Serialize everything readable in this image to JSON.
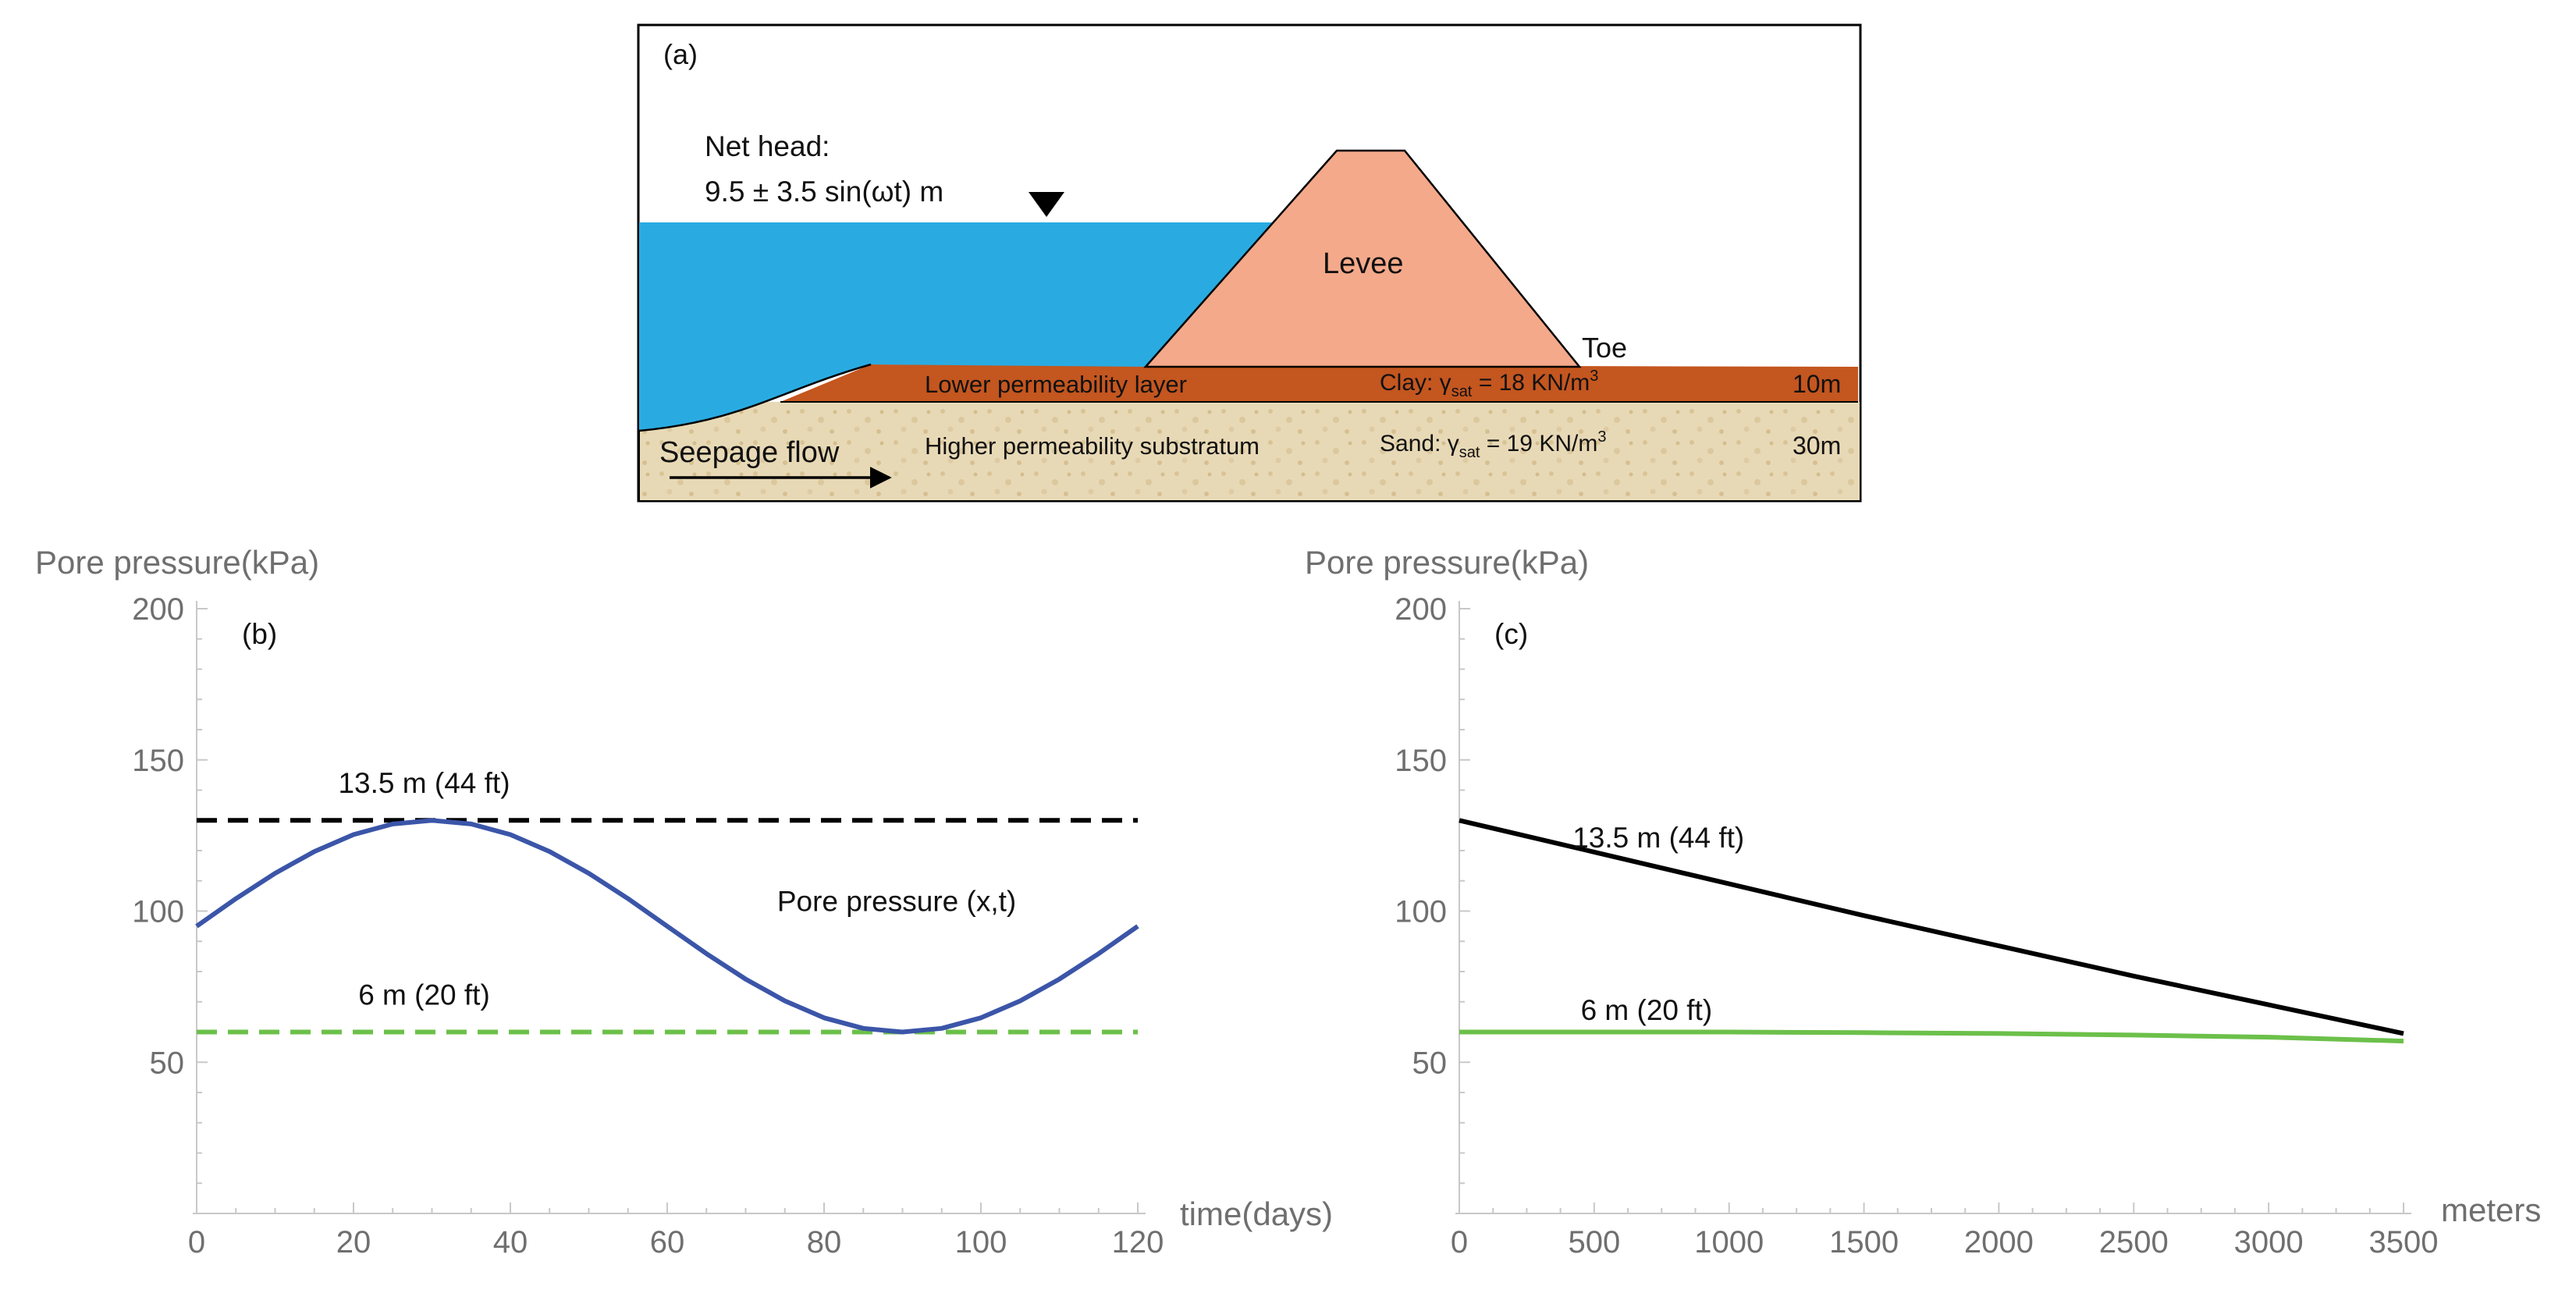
{
  "schematic": {
    "panel_label": "(a)",
    "net_head_label": "Net head:",
    "net_head_formula": "9.5 ± 3.5 sin(ωt) m",
    "levee_label": "Levee",
    "toe_label": "Toe",
    "clay_layer_label": "Lower permeability layer",
    "clay_prop_prefix": "Clay: γ",
    "clay_prop_sub": "sat",
    "clay_prop_value": " = 18 KN/m",
    "clay_prop_sup": "3",
    "clay_thickness": "10m",
    "sand_layer_label": "Higher permeability substratum",
    "sand_prop_prefix": "Sand: γ",
    "sand_prop_sub": "sat",
    "sand_prop_value": " = 19 KN/m",
    "sand_prop_sup": "3",
    "sand_thickness": "30m",
    "seepage_label": "Seepage flow",
    "colors": {
      "water": "#29abe2",
      "levee": "#f4a98a",
      "clay": "#c4561f",
      "sand": "#e8d9b6",
      "outline": "#000000"
    }
  },
  "chart_data": [
    {
      "type": "line",
      "panel_label": "(b)",
      "ylabel": "Pore pressure(kPa)",
      "xlabel": "time(days)",
      "xlim": [
        0,
        120
      ],
      "ylim": [
        0,
        200
      ],
      "xticks": [
        0,
        20,
        40,
        60,
        80,
        100,
        120
      ],
      "yticks": [
        50,
        100,
        150,
        200
      ],
      "series": [
        {
          "name": "13.5 m (44 ft)",
          "style": "dashed",
          "color": "#000000",
          "x": [
            0,
            120
          ],
          "y": [
            130,
            130
          ]
        },
        {
          "name": "6 m (20 ft)",
          "style": "dashed",
          "color": "#6cc04a",
          "x": [
            0,
            120
          ],
          "y": [
            60,
            60
          ]
        },
        {
          "name": "Pore pressure (x,t)",
          "style": "solid",
          "color": "#3b55a8",
          "x": [
            0,
            5,
            10,
            15,
            20,
            25,
            30,
            35,
            40,
            45,
            50,
            55,
            60,
            65,
            70,
            75,
            80,
            85,
            90,
            95,
            100,
            105,
            110,
            115,
            120
          ],
          "y": [
            95,
            104.1,
            112.5,
            119.7,
            125.3,
            128.8,
            130,
            128.8,
            125.3,
            119.7,
            112.5,
            104.1,
            95,
            85.9,
            77.5,
            70.3,
            64.7,
            61.2,
            60,
            61.2,
            64.7,
            70.3,
            77.5,
            85.9,
            95
          ]
        }
      ],
      "annotations": [
        {
          "text": "13.5 m (44 ft)",
          "x": 30,
          "y": 137
        },
        {
          "text": "Pore pressure (x,t)",
          "x": 77,
          "y": 100
        },
        {
          "text": "6 m (20 ft)",
          "x": 30,
          "y": 67
        }
      ]
    },
    {
      "type": "line",
      "panel_label": "(c)",
      "ylabel": "Pore pressure(kPa)",
      "xlabel": "meters",
      "xlim": [
        0,
        3500
      ],
      "ylim": [
        0,
        200
      ],
      "xticks": [
        0,
        500,
        1000,
        1500,
        2000,
        2500,
        3000,
        3500
      ],
      "yticks": [
        50,
        100,
        150,
        200
      ],
      "series": [
        {
          "name": "13.5 m (44 ft)",
          "style": "solid",
          "color": "#000000",
          "x": [
            0,
            500,
            1000,
            1500,
            2000,
            2500,
            3000,
            3500
          ],
          "y": [
            130,
            119.5,
            109,
            98.5,
            88.5,
            78.5,
            69,
            59.5
          ]
        },
        {
          "name": "6 m (20 ft)",
          "style": "solid",
          "color": "#6cc04a",
          "x": [
            0,
            500,
            1000,
            1500,
            2000,
            2500,
            3000,
            3500
          ],
          "y": [
            60,
            60,
            60,
            59.8,
            59.5,
            59,
            58.3,
            57
          ]
        }
      ],
      "annotations": [
        {
          "text": "13.5 m (44 ft)",
          "x": 420,
          "y": 121
        },
        {
          "text": "6 m (20 ft)",
          "x": 450,
          "y": 64
        }
      ]
    }
  ]
}
